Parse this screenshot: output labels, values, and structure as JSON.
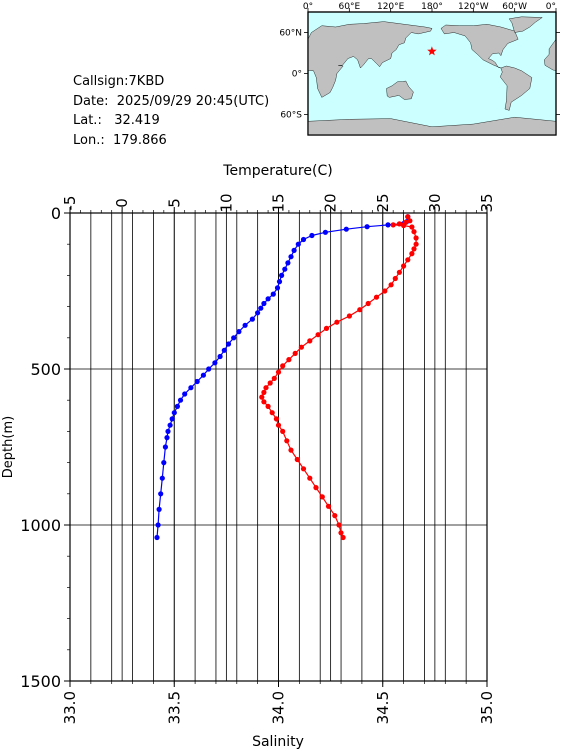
{
  "info": {
    "callsign_label": "Callsign:",
    "callsign": "7KBD",
    "date_label": "Date:",
    "date": "2025/09/29 20:45(UTC)",
    "lat_label": "Lat.:",
    "lat": "32.419",
    "lon_label": "Lon.:",
    "lon": "179.866"
  },
  "map": {
    "lon_labels": [
      "0°",
      "60°E",
      "120°E",
      "180°",
      "120°W",
      "60°W",
      "0°"
    ],
    "lat_labels": [
      "60°N",
      "0°",
      "60°S"
    ],
    "ocean_color": "#ccffff",
    "land_color": "#c0c0c0",
    "marker_color": "#ff0000",
    "marker_lat": 32.419,
    "marker_lon": 179.866
  },
  "chart_data": {
    "type": "line",
    "temperature_axis": {
      "label": "Temperature(C)",
      "range": [
        -5,
        35
      ],
      "ticks": [
        "-5",
        "0",
        "5",
        "10",
        "15",
        "20",
        "25",
        "30",
        "35"
      ]
    },
    "salinity_axis": {
      "label": "Salinity",
      "range": [
        33.0,
        35.0
      ],
      "ticks": [
        "33.0",
        "33.5",
        "34.0",
        "34.5",
        "35.0"
      ]
    },
    "depth_axis": {
      "label": "Depth(m)",
      "range": [
        0,
        1500
      ],
      "ticks": [
        "0",
        "500",
        "1000",
        "1500"
      ],
      "inverted": true
    },
    "grid": true,
    "series": [
      {
        "kind": "temperature",
        "color": "#0000ff",
        "points": [
          [
            27.4,
            12
          ],
          [
            27.3,
            28
          ],
          [
            27.0,
            34
          ],
          [
            25.5,
            38
          ],
          [
            23.5,
            44
          ],
          [
            21.5,
            52
          ],
          [
            19.5,
            62
          ],
          [
            18.2,
            72
          ],
          [
            17.4,
            85
          ],
          [
            16.9,
            100
          ],
          [
            16.5,
            120
          ],
          [
            16.2,
            140
          ],
          [
            15.9,
            160
          ],
          [
            15.6,
            180
          ],
          [
            15.3,
            200
          ],
          [
            15.1,
            220
          ],
          [
            14.9,
            240
          ],
          [
            14.5,
            260
          ],
          [
            14.0,
            275
          ],
          [
            13.6,
            290
          ],
          [
            13.3,
            305
          ],
          [
            13.0,
            320
          ],
          [
            12.5,
            340
          ],
          [
            11.8,
            360
          ],
          [
            11.2,
            380
          ],
          [
            10.7,
            400
          ],
          [
            10.2,
            420
          ],
          [
            9.8,
            440
          ],
          [
            9.4,
            460
          ],
          [
            8.9,
            480
          ],
          [
            8.3,
            500
          ],
          [
            7.8,
            520
          ],
          [
            7.2,
            540
          ],
          [
            6.6,
            560
          ],
          [
            6.0,
            580
          ],
          [
            5.6,
            600
          ],
          [
            5.3,
            620
          ],
          [
            5.0,
            640
          ],
          [
            4.8,
            660
          ],
          [
            4.6,
            680
          ],
          [
            4.4,
            700
          ],
          [
            4.3,
            720
          ],
          [
            4.15,
            750
          ],
          [
            4.0,
            800
          ],
          [
            3.85,
            850
          ],
          [
            3.7,
            900
          ],
          [
            3.55,
            950
          ],
          [
            3.45,
            1000
          ],
          [
            3.35,
            1040
          ]
        ]
      },
      {
        "kind": "salinity",
        "color": "#ff0000",
        "points": [
          [
            34.62,
            12
          ],
          [
            34.63,
            25
          ],
          [
            34.61,
            30
          ],
          [
            34.58,
            35
          ],
          [
            34.55,
            38
          ],
          [
            34.6,
            40
          ],
          [
            34.64,
            45
          ],
          [
            34.65,
            60
          ],
          [
            34.66,
            80
          ],
          [
            34.66,
            100
          ],
          [
            34.65,
            115
          ],
          [
            34.64,
            130
          ],
          [
            34.62,
            150
          ],
          [
            34.6,
            170
          ],
          [
            34.58,
            190
          ],
          [
            34.56,
            210
          ],
          [
            34.54,
            230
          ],
          [
            34.51,
            250
          ],
          [
            34.47,
            270
          ],
          [
            34.43,
            290
          ],
          [
            34.39,
            310
          ],
          [
            34.34,
            330
          ],
          [
            34.28,
            350
          ],
          [
            34.23,
            370
          ],
          [
            34.19,
            390
          ],
          [
            34.15,
            410
          ],
          [
            34.11,
            430
          ],
          [
            34.08,
            450
          ],
          [
            34.05,
            470
          ],
          [
            34.02,
            490
          ],
          [
            34.0,
            510
          ],
          [
            33.98,
            530
          ],
          [
            33.96,
            545
          ],
          [
            33.94,
            560
          ],
          [
            33.93,
            575
          ],
          [
            33.92,
            590
          ],
          [
            33.93,
            605
          ],
          [
            33.95,
            620
          ],
          [
            33.97,
            640
          ],
          [
            33.99,
            660
          ],
          [
            34.0,
            680
          ],
          [
            34.02,
            700
          ],
          [
            34.04,
            730
          ],
          [
            34.06,
            760
          ],
          [
            34.09,
            790
          ],
          [
            34.12,
            820
          ],
          [
            34.15,
            850
          ],
          [
            34.18,
            880
          ],
          [
            34.21,
            910
          ],
          [
            34.24,
            940
          ],
          [
            34.27,
            970
          ],
          [
            34.29,
            1000
          ],
          [
            34.3,
            1025
          ],
          [
            34.31,
            1040
          ]
        ]
      }
    ]
  }
}
